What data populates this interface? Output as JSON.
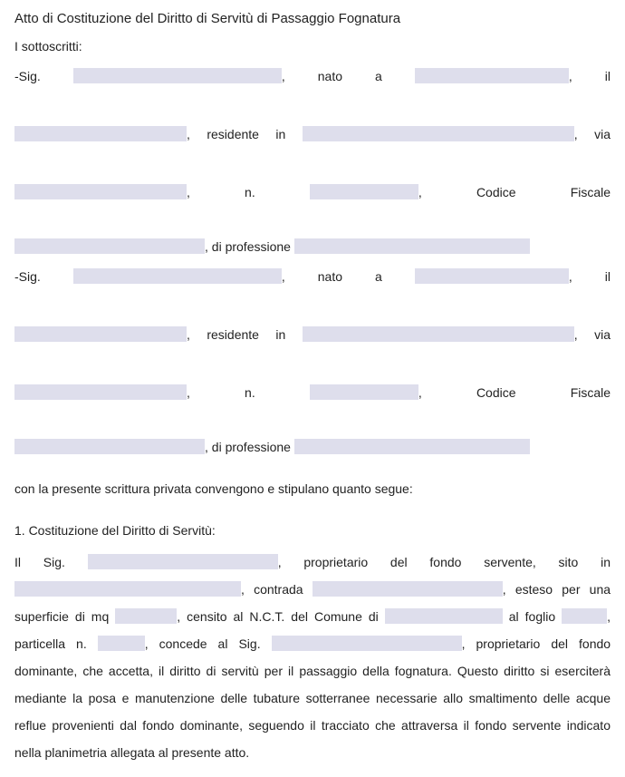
{
  "title": "Atto di Costituzione del Diritto di Servitù di Passaggio Fognatura",
  "labels": {
    "sottoscritti": "I sottoscritti:",
    "sig": "-Sig.",
    "nato": "nato",
    "a": "a",
    "il": "il",
    "residente": "residente",
    "in": "in",
    "via": "via",
    "n": "n.",
    "codice": "Codice",
    "fiscale": "Fiscale",
    "professione": ", di professione",
    "convengono": "con la presente scrittura privata convengono e stipulano quanto segue:",
    "sec1_heading": "1. Costituzione del Diritto di Servitù:",
    "p_il_sig": "Il Sig.",
    "p_prop_servente": ", proprietario del fondo servente, sito in",
    "p_contrada": ", contrada",
    "p_esteso": ", esteso per una",
    "p_superficie": "superficie di mq",
    "p_censito": ", censito al N.C.T. del Comune di",
    "p_al_foglio": "al foglio",
    "p_particella": ", particella n.",
    "p_concede": ", concede al Sig.",
    "p_prop_dom": ", proprietario",
    "p_rest": "del fondo dominante, che accetta, il diritto di servitù per il passaggio della fognatura. Questo diritto si eserciterà mediante la posa e manutenzione delle tubature sotterranee necessarie allo smaltimento delle acque reflue provenienti dal fondo dominante, seguendo il tracciato che attraversa il fondo servente indicato nella planimetria allegata al presente atto."
  },
  "field_widths": {
    "sig_name": 230,
    "sig_place": 170,
    "date": 190,
    "city": 300,
    "street": 190,
    "num": 120,
    "cf": 210,
    "prof": 260,
    "p_name": 210,
    "p_loc": 250,
    "p_contrada": 210,
    "p_mq": 68,
    "p_comune": 130,
    "p_foglio": 50,
    "p_part": 52,
    "p_sig2": 210
  },
  "colors": {
    "field_bg": "#dedeec",
    "text": "#222222",
    "bg": "#ffffff"
  }
}
